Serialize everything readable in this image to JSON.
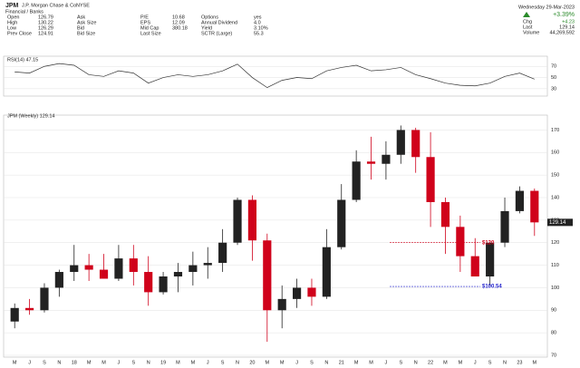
{
  "header": {
    "symbol": "JPM",
    "name": "J.P. Morgan Chase & Co.",
    "exchange": "NYSE",
    "sector": "Financial / Banks",
    "columns": [
      [
        {
          "label": "Open",
          "value": "126.79"
        },
        {
          "label": "High",
          "value": "130.22"
        },
        {
          "label": "Low",
          "value": "126.29"
        },
        {
          "label": "Prev Close",
          "value": "124.91"
        }
      ],
      [
        {
          "label": "Ask"
        },
        {
          "label": "Ask Size"
        },
        {
          "label": "Bid"
        },
        {
          "label": "Bid Size"
        }
      ],
      [
        {
          "label": "P/E",
          "value": "10.68"
        },
        {
          "label": "EPS",
          "value": "12.09"
        },
        {
          "label": "Mid Cap",
          "value": "380.18"
        },
        {
          "label": "Last Size"
        }
      ],
      [
        {
          "label": "Options",
          "value": "yes"
        },
        {
          "label": "Annual Dividend",
          "value": "4.0"
        },
        {
          "label": "Yield",
          "value": "3.10%"
        },
        {
          "label": "SCTR (Large)",
          "value": "55.3"
        }
      ]
    ],
    "date": "Wednesday 29-Mar-2023",
    "change_pct": "+3.39%",
    "chg_label": "Chg",
    "chg": "+4.23",
    "last_label": "Last",
    "last": "129.14",
    "volume_label": "Volume",
    "volume": "44,269,592"
  },
  "chart_data": [
    {
      "type": "line",
      "title": "RSI(14) 47.15",
      "color": "#333333",
      "categories": [
        "M",
        "J",
        "S",
        "N",
        "18",
        "M",
        "M",
        "J",
        "S",
        "N",
        "19",
        "M",
        "M",
        "J",
        "S",
        "N",
        "20",
        "M",
        "M",
        "J",
        "S",
        "N",
        "21",
        "M",
        "M",
        "J",
        "S",
        "N",
        "22",
        "M",
        "M",
        "J",
        "S",
        "N",
        "23",
        "M"
      ],
      "values": [
        60,
        58,
        70,
        75,
        72,
        55,
        52,
        62,
        58,
        40,
        50,
        55,
        52,
        55,
        62,
        74,
        50,
        32,
        45,
        50,
        48,
        62,
        68,
        72,
        62,
        64,
        68,
        55,
        48,
        40,
        36,
        35,
        40,
        52,
        58,
        47.15
      ],
      "ylim": [
        20,
        85
      ],
      "yticks": [
        30,
        50,
        70
      ]
    },
    {
      "type": "candlestick",
      "title": "JPM (Weekly) 129.14",
      "up_color": "#222222",
      "down_color": "#d0021b",
      "categories": [
        "M",
        "J",
        "S",
        "N",
        "18",
        "M",
        "M",
        "J",
        "S",
        "N",
        "19",
        "M",
        "M",
        "J",
        "S",
        "N",
        "20",
        "M",
        "M",
        "J",
        "S",
        "N",
        "21",
        "M",
        "M",
        "J",
        "S",
        "N",
        "22",
        "M",
        "M",
        "J",
        "S",
        "N",
        "23",
        "M"
      ],
      "open": [
        85,
        91,
        90,
        100,
        107,
        110,
        108,
        104,
        113,
        107,
        98,
        105,
        107,
        110,
        111,
        120,
        139,
        121,
        90,
        95,
        100,
        96,
        118,
        139,
        156,
        155,
        159,
        170,
        158,
        138,
        127,
        114,
        105,
        120,
        134,
        143
      ],
      "high": [
        93,
        95,
        102,
        108,
        119,
        115,
        115,
        119,
        119,
        114,
        107,
        111,
        116,
        118,
        126,
        140,
        141,
        124,
        101,
        104,
        104,
        126,
        146,
        161,
        167,
        165,
        172,
        171,
        169,
        140,
        132,
        122,
        120,
        140,
        145,
        144
      ],
      "low": [
        82,
        88,
        89,
        96,
        103,
        103,
        104,
        103,
        101,
        92,
        97,
        98,
        101,
        104,
        107,
        119,
        112,
        76,
        82,
        91,
        92,
        95,
        117,
        138,
        148,
        148,
        155,
        151,
        127,
        115,
        107,
        105,
        101,
        118,
        133,
        123
      ],
      "close": [
        91,
        90,
        100,
        107,
        110,
        108,
        104,
        113,
        107,
        98,
        105,
        107,
        110,
        111,
        120,
        139,
        121,
        90,
        95,
        100,
        96,
        118,
        139,
        156,
        155,
        159,
        170,
        158,
        138,
        127,
        114,
        105,
        120,
        134,
        143,
        129
      ],
      "ylim": [
        70,
        175
      ],
      "yticks": [
        70,
        80,
        90,
        100,
        110,
        120,
        130,
        140,
        150,
        160,
        170
      ],
      "annotations": [
        {
          "text": "$120",
          "value": 120,
          "color": "#d0021b"
        },
        {
          "text": "$100.54",
          "value": 100.54,
          "color": "#2222cc"
        }
      ]
    }
  ]
}
